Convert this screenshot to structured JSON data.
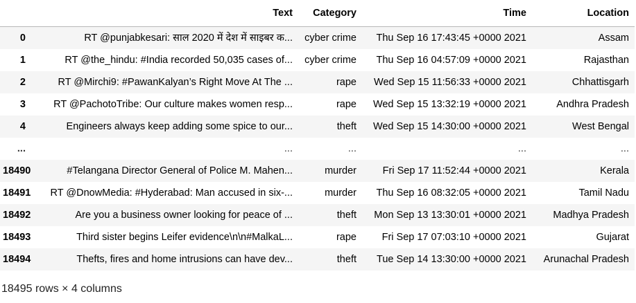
{
  "table": {
    "columns": [
      "Text",
      "Category",
      "Time",
      "Location"
    ],
    "rows": [
      {
        "index": "0",
        "text": "RT @punjabkesari: साल 2020 में देश में साइबर क...",
        "category": "cyber crime",
        "time": "Thu Sep 16 17:43:45 +0000 2021",
        "location": "Assam"
      },
      {
        "index": "1",
        "text": "RT @the_hindu: #India recorded 50,035 cases of...",
        "category": "cyber crime",
        "time": "Thu Sep 16 04:57:09 +0000 2021",
        "location": "Rajasthan"
      },
      {
        "index": "2",
        "text": "RT @Mirchi9: #PawanKalyan’s Right Move At The ...",
        "category": "rape",
        "time": "Wed Sep 15 11:56:33 +0000 2021",
        "location": "Chhattisgarh"
      },
      {
        "index": "3",
        "text": "RT @PachotoTribe: Our culture makes women resp...",
        "category": "rape",
        "time": "Wed Sep 15 13:32:19 +0000 2021",
        "location": "Andhra Pradesh"
      },
      {
        "index": "4",
        "text": "Engineers always keep adding some spice to our...",
        "category": "theft",
        "time": "Wed Sep 15 14:30:00 +0000 2021",
        "location": "West Bengal"
      },
      {
        "index": "...",
        "text": "...",
        "category": "...",
        "time": "...",
        "location": "..."
      },
      {
        "index": "18490",
        "text": "#Telangana Director General of Police M. Mahen...",
        "category": "murder",
        "time": "Fri Sep 17 11:52:44 +0000 2021",
        "location": "Kerala"
      },
      {
        "index": "18491",
        "text": "RT @DnowMedia: #Hyderabad: Man accused in six-...",
        "category": "murder",
        "time": "Thu Sep 16 08:32:05 +0000 2021",
        "location": "Tamil Nadu"
      },
      {
        "index": "18492",
        "text": "Are you a business owner looking for peace of ...",
        "category": "theft",
        "time": "Mon Sep 13 13:30:01 +0000 2021",
        "location": "Madhya Pradesh"
      },
      {
        "index": "18493",
        "text": "Third sister begins Leifer evidence\\n\\n#MalkaL...",
        "category": "rape",
        "time": "Fri Sep 17 07:03:10 +0000 2021",
        "location": "Gujarat"
      },
      {
        "index": "18494",
        "text": "Thefts, fires and home intrusions can have dev...",
        "category": "theft",
        "time": "Tue Sep 14 13:30:00 +0000 2021",
        "location": "Arunachal Pradesh"
      }
    ]
  },
  "footer": {
    "shape_text": "18495 rows × 4 columns"
  }
}
